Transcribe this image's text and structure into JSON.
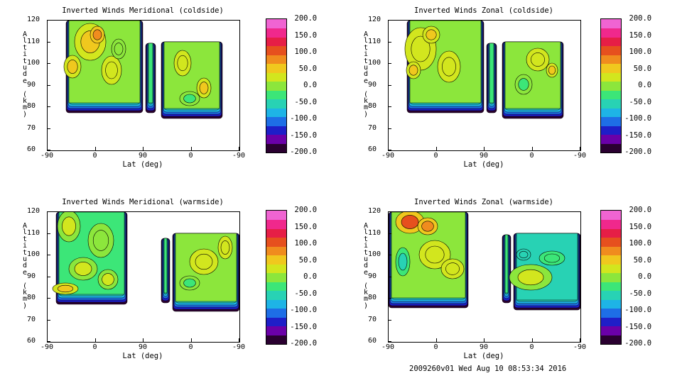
{
  "chart_data": [
    {
      "type": "heatmap",
      "title": "Inverted Winds Meridional (coldside)",
      "xlabel": "Lat (deg)",
      "ylabel": "Altitude (km)",
      "x_ticks": [
        "-90",
        "0",
        "90",
        "0",
        "-90"
      ],
      "y_ticks": [
        "60",
        "70",
        "80",
        "90",
        "100",
        "110",
        "120"
      ],
      "ylim": [
        60,
        120
      ],
      "colorbar_ticks": [
        "200.0",
        "150.0",
        "100.0",
        "50.0",
        "0.0",
        "-50.0",
        "-100.0",
        "-150.0",
        "-200.0"
      ],
      "colorbar_range": [
        -200,
        200
      ]
    },
    {
      "type": "heatmap",
      "title": "Inverted Winds Zonal (coldside)",
      "xlabel": "Lat (deg)",
      "ylabel": "Altitude (km)",
      "x_ticks": [
        "-90",
        "0",
        "90",
        "0",
        "-90"
      ],
      "y_ticks": [
        "60",
        "70",
        "80",
        "90",
        "100",
        "110",
        "120"
      ],
      "ylim": [
        60,
        120
      ],
      "colorbar_ticks": [
        "200.0",
        "150.0",
        "100.0",
        "50.0",
        "0.0",
        "-50.0",
        "-100.0",
        "-150.0",
        "-200.0"
      ],
      "colorbar_range": [
        -200,
        200
      ]
    },
    {
      "type": "heatmap",
      "title": "Inverted Winds Meridional (warmside)",
      "xlabel": "Lat (deg)",
      "ylabel": "Altitude (km)",
      "x_ticks": [
        "-90",
        "0",
        "90",
        "0",
        "-90"
      ],
      "y_ticks": [
        "60",
        "70",
        "80",
        "90",
        "100",
        "110",
        "120"
      ],
      "ylim": [
        60,
        120
      ],
      "colorbar_ticks": [
        "200.0",
        "150.0",
        "100.0",
        "50.0",
        "0.0",
        "-50.0",
        "-100.0",
        "-150.0",
        "-200.0"
      ],
      "colorbar_range": [
        -200,
        200
      ]
    },
    {
      "type": "heatmap",
      "title": "Inverted Winds Zonal (warmside)",
      "xlabel": "Lat (deg)",
      "ylabel": "Altitude (km)",
      "x_ticks": [
        "-90",
        "0",
        "90",
        "0",
        "-90"
      ],
      "y_ticks": [
        "60",
        "70",
        "80",
        "90",
        "100",
        "110",
        "120"
      ],
      "ylim": [
        60,
        120
      ],
      "colorbar_ticks": [
        "200.0",
        "150.0",
        "100.0",
        "50.0",
        "0.0",
        "-50.0",
        "-100.0",
        "-150.0",
        "-200.0"
      ],
      "colorbar_range": [
        -200,
        200
      ]
    }
  ],
  "colorbar_colors": [
    "#2a0030",
    "#6a00a8",
    "#1e1ec8",
    "#1e6ee6",
    "#1eb4e6",
    "#28d2b4",
    "#3ce678",
    "#8ce63c",
    "#d2e61e",
    "#f0c81e",
    "#f08c1e",
    "#e6501e",
    "#e61e46",
    "#f0288c",
    "#f064d2"
  ],
  "footer": "2009260v01 Wed Aug 10 08:53:34 2016"
}
